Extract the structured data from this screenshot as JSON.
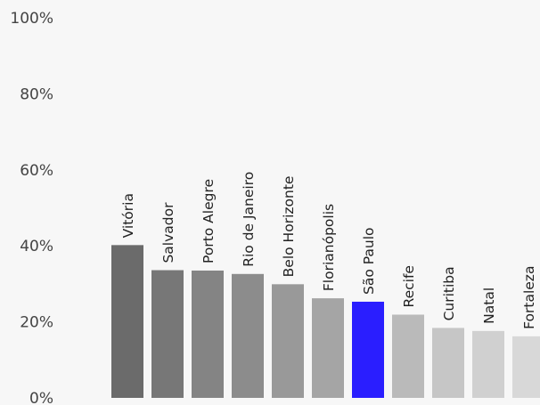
{
  "chart_data": {
    "type": "bar",
    "title": "",
    "xlabel": "",
    "ylabel": "",
    "ylim": [
      0,
      100
    ],
    "y_ticks": [
      "0%",
      "20%",
      "40%",
      "60%",
      "80%",
      "100%"
    ],
    "grid": false,
    "categories": [
      "Vitória",
      "Salvador",
      "Porto Alegre",
      "Rio de Janeiro",
      "Belo Horizonte",
      "Florianópolis",
      "São Paulo",
      "Recife",
      "Curitiba",
      "Natal",
      "Fortaleza"
    ],
    "values": [
      40.2,
      33.6,
      33.5,
      32.6,
      29.9,
      26.2,
      25.3,
      21.9,
      18.4,
      17.6,
      16.2
    ],
    "bar_colors": [
      "#6b6b6b",
      "#777777",
      "#848484",
      "#8c8c8c",
      "#999999",
      "#a5a5a5",
      "#2a1eff",
      "#bababa",
      "#c6c6c6",
      "#d0d0d0",
      "#d8d8d8"
    ],
    "highlight": "São Paulo"
  }
}
